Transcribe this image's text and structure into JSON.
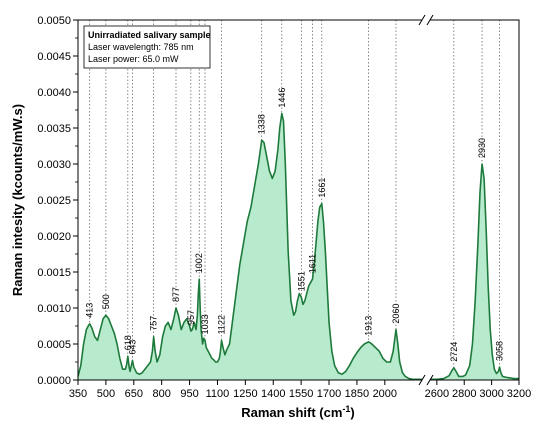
{
  "chart_data": {
    "type": "area",
    "title": "",
    "xlabel": "Raman shift (cm",
    "xlabel_sup": "-1",
    "xlabel_end": ")",
    "ylabel": "Raman intesity (kcounts/mW.s)",
    "ylim": [
      0,
      0.005
    ],
    "y_ticks": [
      "0.0000",
      "0.0005",
      "0.0010",
      "0.0015",
      "0.0020",
      "0.0025",
      "0.0030",
      "0.0035",
      "0.0040",
      "0.0045",
      "0.0050"
    ],
    "x_break": true,
    "x_segments": [
      {
        "range": [
          350,
          2200
        ],
        "ticks": [
          "350",
          "500",
          "650",
          "800",
          "950",
          "1100",
          "1250",
          "1400",
          "1550",
          "1700",
          "1850",
          "2000"
        ]
      },
      {
        "range": [
          2550,
          3200
        ],
        "ticks": [
          "2600",
          "2800",
          "3000",
          "3200"
        ]
      }
    ],
    "legend": {
      "title": "Unirradiated salivary sample",
      "lines": [
        "Laser wavelength: 785 nm",
        "Laser power: 65.0 mW"
      ],
      "position": "top-left"
    },
    "colors": {
      "line": "#1e7a3c",
      "fill": "#b8ebcd"
    },
    "peaks": [
      {
        "x": 413,
        "label": "413"
      },
      {
        "x": 500,
        "label": "500"
      },
      {
        "x": 618,
        "label": "618"
      },
      {
        "x": 643,
        "label": "643"
      },
      {
        "x": 757,
        "label": "757"
      },
      {
        "x": 877,
        "label": "877"
      },
      {
        "x": 957,
        "label": "957"
      },
      {
        "x": 1002,
        "label": "1002"
      },
      {
        "x": 1033,
        "label": "1033"
      },
      {
        "x": 1122,
        "label": "1122"
      },
      {
        "x": 1338,
        "label": "1338"
      },
      {
        "x": 1446,
        "label": "1446"
      },
      {
        "x": 1551,
        "label": "1551"
      },
      {
        "x": 1611,
        "label": "1611"
      },
      {
        "x": 1661,
        "label": "1661"
      },
      {
        "x": 1913,
        "label": "1913"
      },
      {
        "x": 2060,
        "label": "2060"
      },
      {
        "x": 2724,
        "label": "2724"
      },
      {
        "x": 2930,
        "label": "2930"
      },
      {
        "x": 3058,
        "label": "3058"
      }
    ],
    "series": [
      {
        "segment": 0,
        "x": [
          350,
          365,
          380,
          395,
          405,
          413,
          425,
          440,
          455,
          470,
          485,
          500,
          515,
          530,
          545,
          560,
          575,
          590,
          605,
          612,
          618,
          625,
          630,
          637,
          643,
          650,
          665,
          680,
          695,
          710,
          725,
          740,
          750,
          757,
          765,
          775,
          790,
          805,
          820,
          835,
          850,
          865,
          877,
          890,
          905,
          920,
          935,
          950,
          957,
          965,
          975,
          985,
          992,
          997,
          1002,
          1007,
          1012,
          1020,
          1026,
          1033,
          1040,
          1050,
          1060,
          1070,
          1080,
          1090,
          1100,
          1110,
          1116,
          1122,
          1130,
          1140,
          1150,
          1165,
          1180,
          1200,
          1220,
          1240,
          1260,
          1280,
          1300,
          1320,
          1338,
          1350,
          1365,
          1380,
          1395,
          1410,
          1425,
          1435,
          1446,
          1455,
          1465,
          1480,
          1495,
          1510,
          1520,
          1530,
          1540,
          1551,
          1560,
          1570,
          1580,
          1590,
          1600,
          1611,
          1620,
          1630,
          1640,
          1650,
          1661,
          1670,
          1680,
          1690,
          1700,
          1715,
          1730,
          1750,
          1770,
          1790,
          1810,
          1830,
          1850,
          1870,
          1890,
          1913,
          1930,
          1950,
          1970,
          1990,
          2010,
          2030,
          2045,
          2060,
          2070,
          2080,
          2095,
          2110,
          2130,
          2150,
          2170,
          2190,
          2200
        ],
        "y": [
          5e-05,
          0.0002,
          0.0005,
          0.0007,
          0.00075,
          0.00078,
          0.00072,
          0.0006,
          0.00055,
          0.0007,
          0.00085,
          0.0009,
          0.00085,
          0.00075,
          0.00065,
          0.0005,
          0.0003,
          0.00015,
          0.00015,
          0.00022,
          0.00033,
          0.00018,
          0.00012,
          0.0002,
          0.00027,
          0.00018,
          0.0001,
          8e-05,
          0.0001,
          0.00015,
          0.0002,
          0.00025,
          0.0004,
          0.0006,
          0.0004,
          0.00025,
          0.00035,
          0.0006,
          0.00075,
          0.0008,
          0.0007,
          0.00085,
          0.001,
          0.0009,
          0.0007,
          0.0008,
          0.00085,
          0.00075,
          0.00068,
          0.0007,
          0.0008,
          0.0007,
          0.0009,
          0.0012,
          0.0014,
          0.001,
          0.0007,
          0.0005,
          0.00058,
          0.00055,
          0.00045,
          0.0004,
          0.00035,
          0.0003,
          0.00028,
          0.00025,
          0.00025,
          0.0003,
          0.0004,
          0.00055,
          0.00045,
          0.00035,
          0.00042,
          0.0005,
          0.0008,
          0.0012,
          0.0016,
          0.0019,
          0.0022,
          0.0024,
          0.0027,
          0.003,
          0.00333,
          0.0033,
          0.0031,
          0.0029,
          0.0028,
          0.0029,
          0.0032,
          0.0035,
          0.0037,
          0.0036,
          0.003,
          0.0018,
          0.0011,
          0.0009,
          0.00095,
          0.0011,
          0.0012,
          0.00115,
          0.00105,
          0.0011,
          0.0012,
          0.0013,
          0.00135,
          0.0014,
          0.0016,
          0.0019,
          0.0022,
          0.0024,
          0.00245,
          0.0022,
          0.0018,
          0.0013,
          0.0008,
          0.0004,
          0.0002,
          0.0001,
          8e-05,
          0.00012,
          0.0002,
          0.0003,
          0.00038,
          0.00045,
          0.0005,
          0.00053,
          0.0005,
          0.00045,
          0.0004,
          0.0003,
          0.00025,
          0.00025,
          0.0004,
          0.0007,
          0.0005,
          0.00025,
          0.0001,
          5e-05,
          2e-05,
          1e-05,
          1e-05,
          1e-05,
          1e-05
        ]
      },
      {
        "segment": 1,
        "x": [
          2550,
          2600,
          2650,
          2690,
          2710,
          2724,
          2740,
          2760,
          2790,
          2810,
          2840,
          2860,
          2880,
          2900,
          2915,
          2930,
          2945,
          2960,
          2975,
          2990,
          3005,
          3020,
          3035,
          3050,
          3058,
          3068,
          3080,
          3100,
          3130,
          3160,
          3200
        ],
        "y": [
          1e-05,
          1e-05,
          2e-05,
          6e-05,
          0.00013,
          0.00017,
          0.00012,
          5e-05,
          5e-05,
          7e-05,
          0.0002,
          0.0005,
          0.0011,
          0.0019,
          0.0026,
          0.003,
          0.0028,
          0.0021,
          0.0013,
          0.0007,
          0.00035,
          0.00015,
          9e-05,
          0.00012,
          0.00018,
          0.0001,
          5e-05,
          4e-05,
          3e-05,
          2e-05,
          2e-05
        ]
      }
    ]
  }
}
